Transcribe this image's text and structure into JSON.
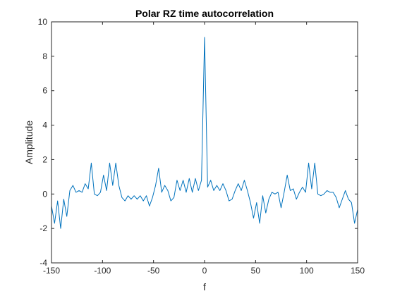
{
  "chart_data": {
    "type": "line",
    "title": "Polar RZ time autocorrelation",
    "xlabel": "f",
    "ylabel": "Amplitude",
    "xlim": [
      -150,
      150
    ],
    "ylim": [
      -4,
      10
    ],
    "xticks": [
      "-150",
      "-100",
      "-50",
      "0",
      "50",
      "100",
      "150"
    ],
    "yticks": [
      "-4",
      "-2",
      "0",
      "2",
      "4",
      "6",
      "8",
      "10"
    ],
    "grid": false,
    "line_color": "#0072BD",
    "series": [
      {
        "x": [
          -150,
          -147,
          -144,
          -141,
          -138,
          -135,
          -132,
          -129,
          -126,
          -123,
          -120,
          -117,
          -114,
          -111,
          -108,
          -105,
          -102,
          -99,
          -96,
          -93,
          -90,
          -87,
          -84,
          -81,
          -78,
          -75,
          -72,
          -69,
          -66,
          -63,
          -60,
          -57,
          -54,
          -51,
          -48,
          -45,
          -42,
          -39,
          -36,
          -33,
          -30,
          -27,
          -24,
          -21,
          -18,
          -15,
          -12,
          -9,
          -6,
          -3,
          0,
          3,
          6,
          9,
          12,
          15,
          18,
          21,
          24,
          27,
          30,
          33,
          36,
          39,
          42,
          45,
          48,
          51,
          54,
          57,
          60,
          63,
          66,
          69,
          72,
          75,
          78,
          81,
          84,
          87,
          90,
          93,
          96,
          99,
          102,
          105,
          108,
          111,
          114,
          117,
          120,
          123,
          126,
          129,
          132,
          135,
          138,
          141,
          144,
          147,
          150
        ],
        "y": [
          -0.7,
          -1.7,
          -0.4,
          -2.0,
          -0.3,
          -1.3,
          0.2,
          0.5,
          0.1,
          0.2,
          0.1,
          0.6,
          0.3,
          1.8,
          0.0,
          -0.1,
          0.1,
          1.1,
          0.2,
          1.8,
          0.5,
          1.8,
          0.5,
          -0.2,
          -0.4,
          -0.1,
          -0.3,
          -0.1,
          -0.3,
          -0.1,
          -0.4,
          -0.1,
          -0.7,
          -0.2,
          0.5,
          1.5,
          0.1,
          0.5,
          0.2,
          -0.4,
          -0.2,
          0.8,
          0.2,
          0.8,
          0.1,
          0.9,
          0.1,
          0.9,
          0.2,
          0.8,
          9.1,
          0.4,
          0.8,
          0.2,
          0.5,
          0.2,
          0.6,
          0.2,
          -0.4,
          -0.3,
          0.2,
          0.6,
          0.2,
          0.8,
          0.2,
          -0.5,
          -1.4,
          -0.5,
          -1.7,
          -0.1,
          -1.1,
          -0.3,
          0.1,
          0.0,
          0.1,
          -0.8,
          0.1,
          1.1,
          0.2,
          0.3,
          -0.3,
          0.1,
          0.4,
          0.1,
          1.8,
          0.3,
          1.8,
          0.0,
          -0.1,
          0.0,
          0.2,
          0.1,
          0.1,
          -0.2,
          -0.8,
          -0.3,
          0.2,
          -0.3,
          -0.5,
          -1.7,
          -0.9
        ]
      }
    ]
  }
}
